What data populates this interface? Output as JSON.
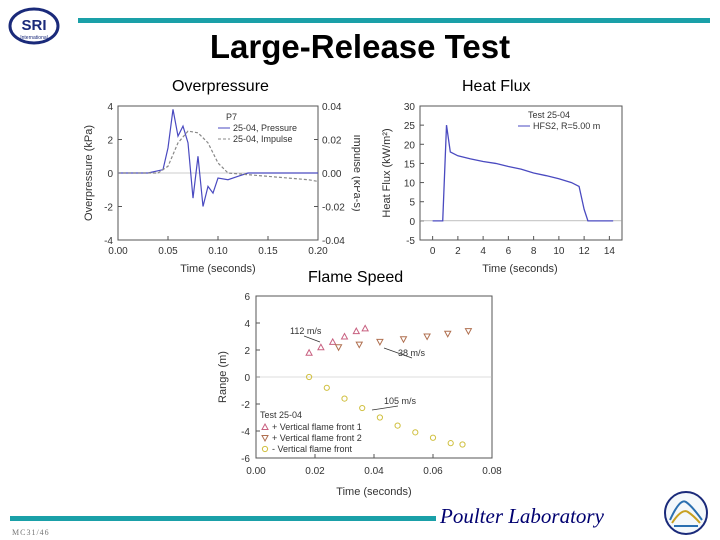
{
  "header": {
    "logo_text": "SRI",
    "logo_subtext": "International",
    "title": "Large-Release Test"
  },
  "sections": {
    "overpressure": "Overpressure",
    "heat_flux": "Heat Flux",
    "flame_speed": "Flame Speed"
  },
  "footer": {
    "brand": "Poulter Laboratory",
    "code": "MC31/46"
  },
  "colors": {
    "accent": "#1aa0a8",
    "brand": "#000070",
    "series_blue": "#4a4ac0",
    "series_gray": "#888888"
  },
  "chart_data": [
    {
      "type": "line",
      "panel_label": "P7",
      "xlabel": "Time (seconds)",
      "ylabel": "Overpressure (kPa)",
      "y2label": "Impulse (kPa-s)",
      "xlim": [
        0,
        0.2
      ],
      "ylim": [
        -4,
        4
      ],
      "y2lim": [
        -0.04,
        0.04
      ],
      "xticks": [
        "0.00",
        "0.05",
        "0.10",
        "0.15",
        "0.20"
      ],
      "yticks": [
        "-4",
        "-2",
        "0",
        "2",
        "4"
      ],
      "y2ticks": [
        "-0.04",
        "-0.02",
        "0.00",
        "0.02",
        "0.04"
      ],
      "series": [
        {
          "name": "25-04, Pressure",
          "axis": "y",
          "style": "solid",
          "x": [
            0,
            0.03,
            0.045,
            0.05,
            0.055,
            0.06,
            0.065,
            0.07,
            0.075,
            0.08,
            0.085,
            0.09,
            0.095,
            0.1,
            0.11,
            0.12,
            0.13,
            0.15,
            0.18,
            0.2
          ],
          "y": [
            0,
            0,
            0.2,
            1.5,
            3.8,
            2.2,
            2.8,
            1.8,
            -1.5,
            1.0,
            -2.0,
            -0.8,
            -1.2,
            -0.3,
            -0.4,
            -0.2,
            0,
            0,
            0,
            0
          ]
        },
        {
          "name": "25-04, Impulse",
          "axis": "y2",
          "style": "dashed",
          "x": [
            0,
            0.04,
            0.05,
            0.06,
            0.07,
            0.08,
            0.09,
            0.1,
            0.11,
            0.13,
            0.15,
            0.17,
            0.19,
            0.2
          ],
          "y": [
            0,
            0,
            0.004,
            0.018,
            0.025,
            0.024,
            0.018,
            0.006,
            0,
            -0.001,
            -0.002,
            -0.003,
            -0.004,
            -0.005
          ]
        }
      ]
    },
    {
      "type": "line",
      "xlabel": "Time (seconds)",
      "ylabel": "Heat Flux (kW/m²)",
      "xlim": [
        -1,
        15
      ],
      "ylim": [
        -5,
        30
      ],
      "xticks": [
        "0",
        "2",
        "4",
        "6",
        "8",
        "10",
        "12",
        "14"
      ],
      "yticks": [
        "-5",
        "0",
        "5",
        "10",
        "15",
        "20",
        "25",
        "30"
      ],
      "legend_title": "Test 25-04",
      "series": [
        {
          "name": "HFS2, R=5.00 m",
          "x": [
            0,
            0.8,
            1.1,
            1.4,
            2,
            3,
            4,
            5,
            6,
            7,
            8,
            9,
            10,
            11,
            11.6,
            12,
            12.3,
            13,
            14.3
          ],
          "y": [
            0,
            0,
            25,
            18,
            17,
            16.2,
            15.5,
            15,
            14.2,
            13.5,
            12.5,
            11.8,
            11,
            10,
            9,
            3,
            0,
            0,
            0
          ]
        }
      ]
    },
    {
      "type": "scatter",
      "xlabel": "Time (seconds)",
      "ylabel": "Range (m)",
      "xlim": [
        0,
        0.08
      ],
      "ylim": [
        -6,
        6
      ],
      "xticks": [
        "0.00",
        "0.02",
        "0.04",
        "0.06",
        "0.08"
      ],
      "yticks": [
        "-6",
        "-4",
        "-2",
        "0",
        "2",
        "4",
        "6"
      ],
      "legend_title": "Test 25-04",
      "annotations": [
        "112 m/s",
        "38 m/s",
        "105 m/s"
      ],
      "series": [
        {
          "name": "+ Vertical flame front 1",
          "color": "#c86080",
          "marker": "triangle-up",
          "x": [
            0.018,
            0.022,
            0.026,
            0.03,
            0.034,
            0.037
          ],
          "y": [
            1.8,
            2.2,
            2.6,
            3.0,
            3.4,
            3.6
          ]
        },
        {
          "name": "+ Vertical flame front 2",
          "color": "#b07050",
          "marker": "triangle-down",
          "x": [
            0.028,
            0.035,
            0.042,
            0.05,
            0.058,
            0.065,
            0.072
          ],
          "y": [
            2.2,
            2.4,
            2.6,
            2.8,
            3.0,
            3.2,
            3.4
          ]
        },
        {
          "name": "- Vertical flame front",
          "color": "#d0c040",
          "marker": "circle",
          "x": [
            0.018,
            0.024,
            0.03,
            0.036,
            0.042,
            0.048,
            0.054,
            0.06,
            0.066,
            0.07
          ],
          "y": [
            0,
            -0.8,
            -1.6,
            -2.3,
            -3.0,
            -3.6,
            -4.1,
            -4.5,
            -4.9,
            -5.0
          ]
        }
      ]
    }
  ]
}
